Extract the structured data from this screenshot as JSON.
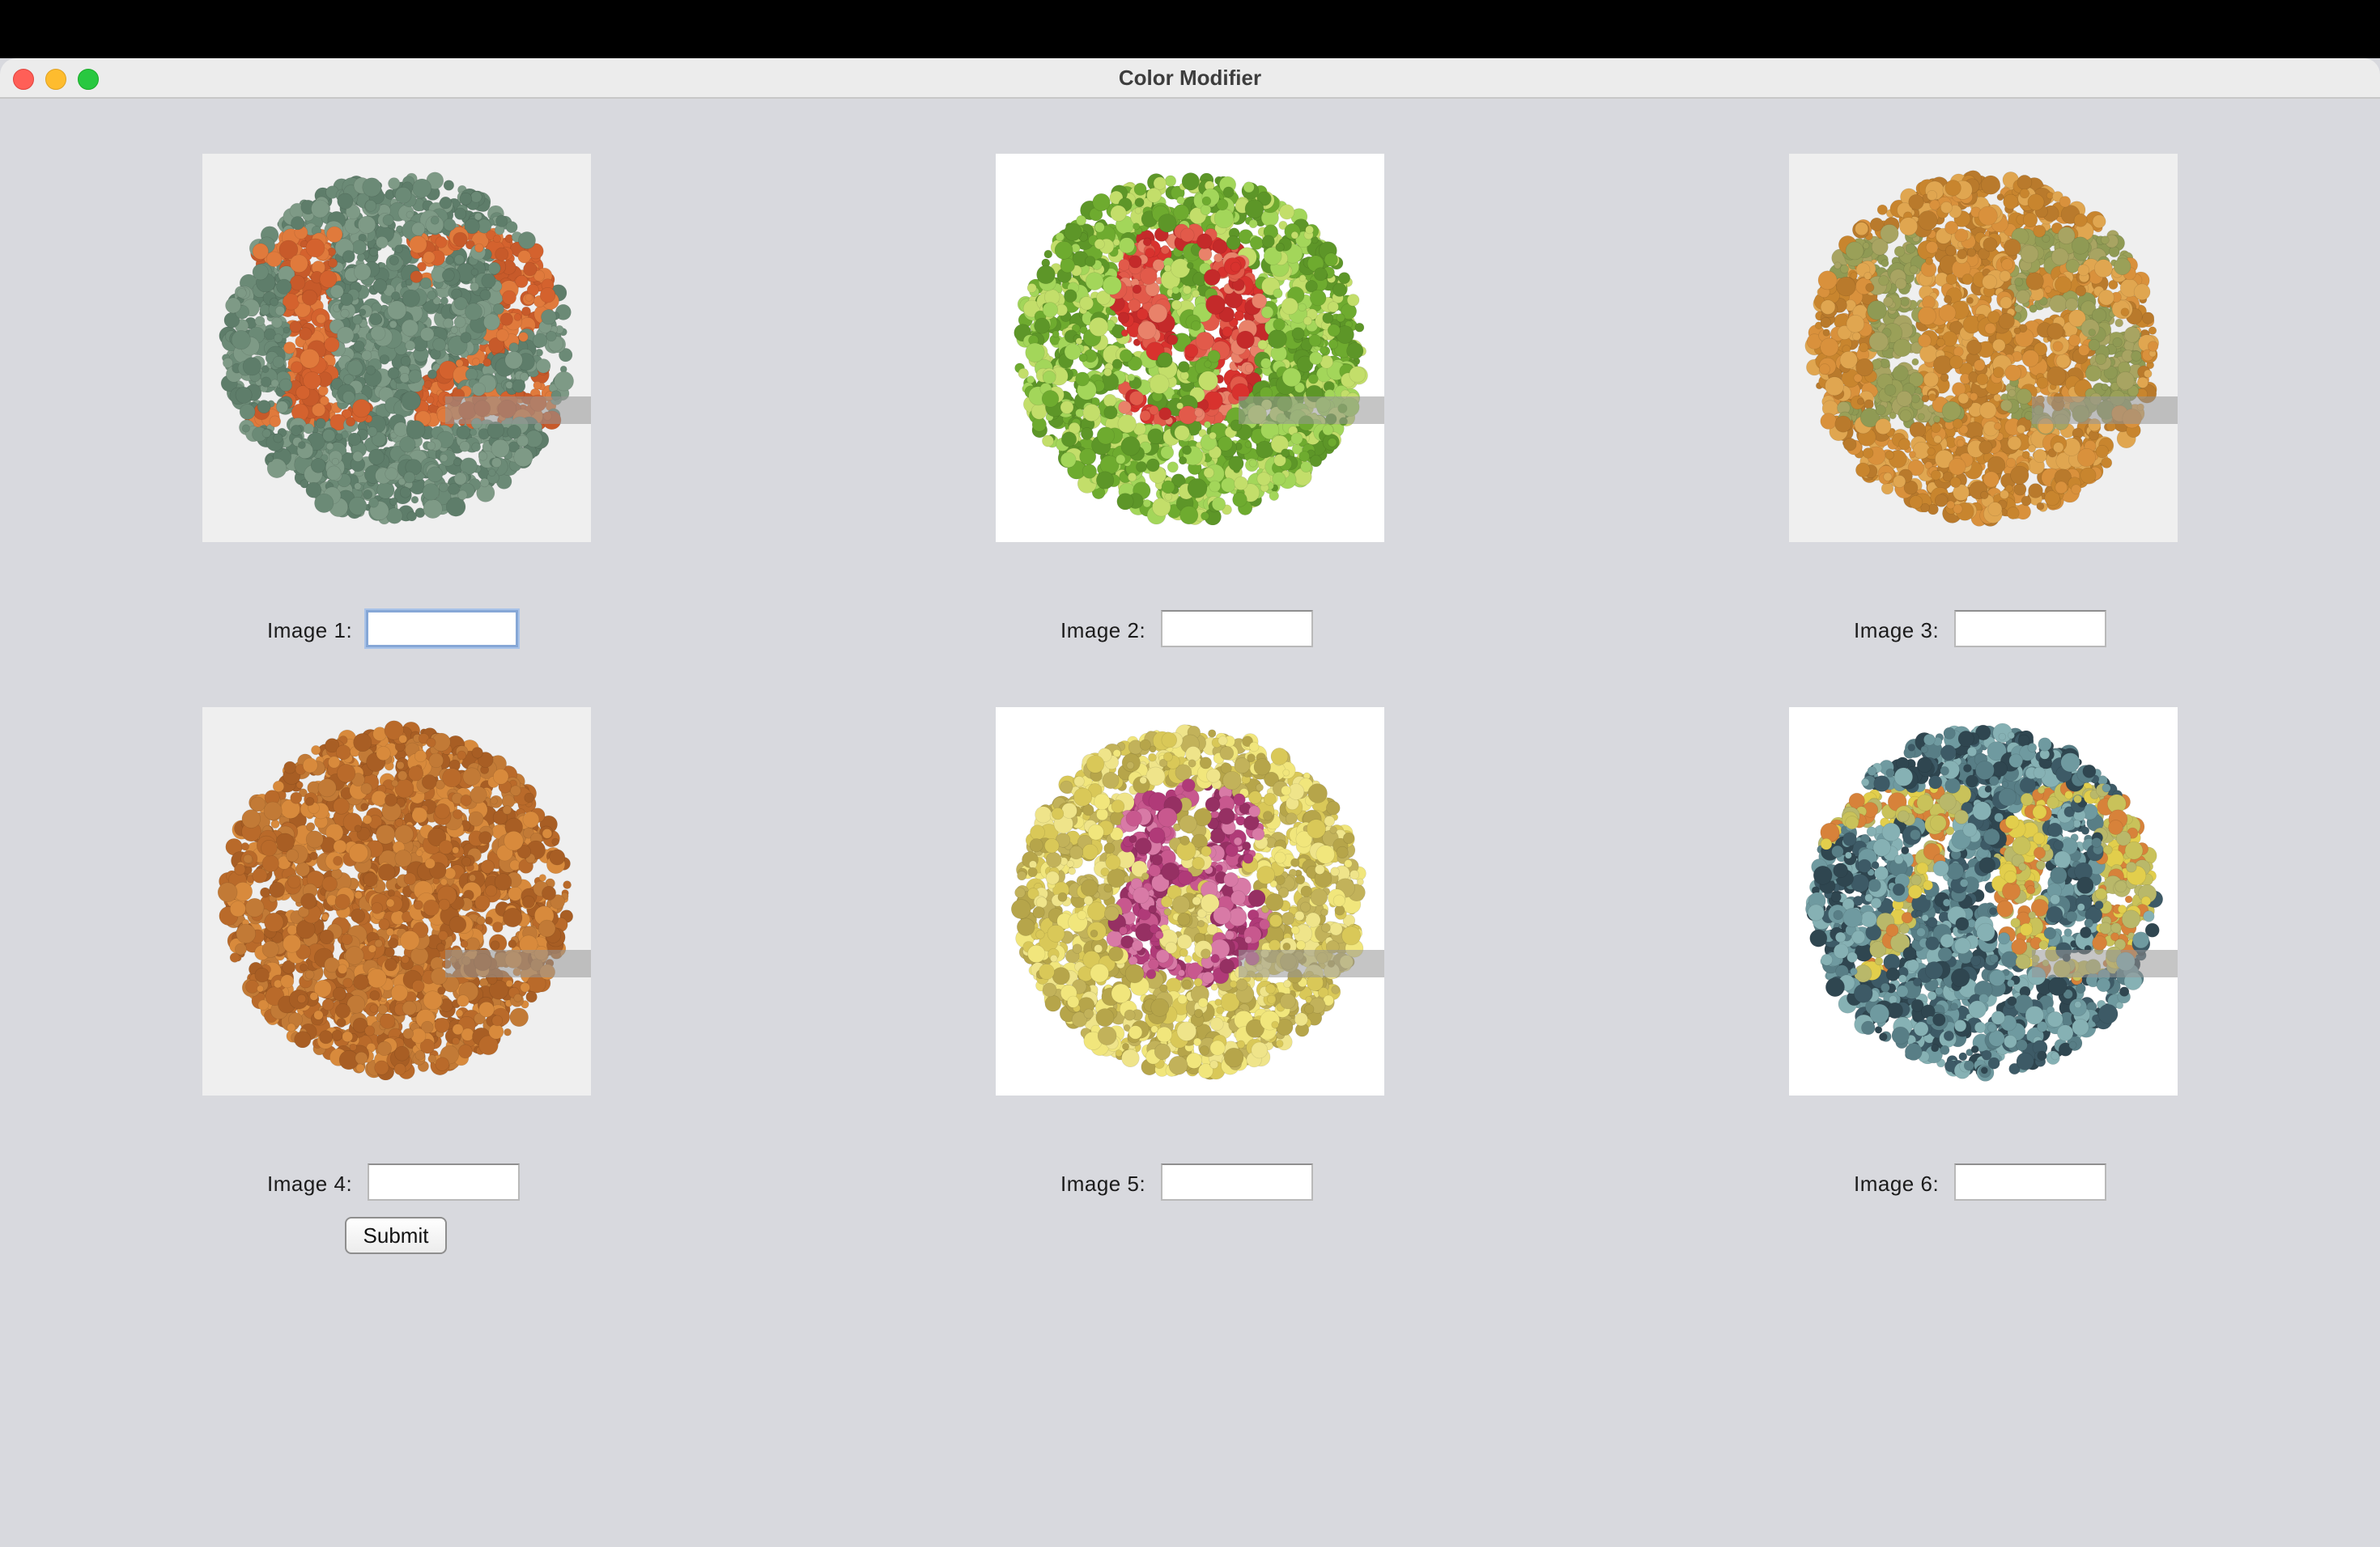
{
  "window": {
    "title": "Color Modifier"
  },
  "plates": [
    {
      "label": "Image 1:",
      "value": "",
      "focused": true,
      "bg": "#efefef",
      "circle": "#6e8c78",
      "dot_base": "#6b8a76",
      "fig_color": "#d4622e",
      "fig_text": "12",
      "alt_colors": [
        "#5e7d6a",
        "#7e9a86",
        "#6b8a76"
      ],
      "fig_colors": [
        "#d4622e",
        "#e07a3c",
        "#c75a2a"
      ],
      "icon": "ishihara-plate-12-icon"
    },
    {
      "label": "Image 2:",
      "value": "",
      "focused": false,
      "bg": "#ffffff",
      "circle": "#8cc63f",
      "dot_base": "#8cc63f",
      "fig_color": "#d8322e",
      "fig_text": "9",
      "alt_colors": [
        "#6eab2f",
        "#a3d65a",
        "#5d9628",
        "#c3de6a"
      ],
      "fig_colors": [
        "#d8322e",
        "#e25a4a",
        "#c42a2a",
        "#e9826a"
      ],
      "icon": "ishihara-plate-9-icon"
    },
    {
      "label": "Image 3:",
      "value": "",
      "focused": false,
      "bg": "#efefef",
      "circle": "#d49436",
      "dot_base": "#d49436",
      "fig_color": "#9aa058",
      "fig_text": "15",
      "alt_colors": [
        "#c8852e",
        "#e0a650",
        "#d9913c",
        "#b97a2c"
      ],
      "fig_colors": [
        "#9aa058",
        "#8f9a54",
        "#a8a462"
      ],
      "icon": "ishihara-plate-15-icon"
    },
    {
      "label": "Image 4:",
      "value": "",
      "focused": false,
      "bg": "#efefef",
      "circle": "#c8742c",
      "dot_base": "#c8742c",
      "fig_color": "#a39434",
      "fig_text": "",
      "alt_colors": [
        "#b96a2a",
        "#d88a3c",
        "#c27a36",
        "#a85e24"
      ],
      "fig_colors": [
        "#a39434",
        "#8f8a36",
        "#b2a040"
      ],
      "icon": "ishihara-plate-hidden-icon"
    },
    {
      "label": "Image 5:",
      "value": "",
      "focused": false,
      "bg": "#ffffff",
      "circle": "#e8dc6c",
      "dot_base": "#e8dc6c",
      "fig_color": "#b03a78",
      "fig_text": "8",
      "alt_colors": [
        "#d9c858",
        "#efe48a",
        "#b6a54a",
        "#f1e67c",
        "#c2b25a"
      ],
      "fig_colors": [
        "#b03a78",
        "#c8588e",
        "#963063",
        "#d87aa6"
      ],
      "icon": "ishihara-plate-8-icon"
    },
    {
      "label": "Image 6:",
      "value": "",
      "focused": false,
      "bg": "#ffffff",
      "circle": "#4d6e74",
      "dot_base": "#4d6e74",
      "fig_color": "#c9c25a",
      "fig_text": "70",
      "alt_colors": [
        "#3d5a66",
        "#6f9aa0",
        "#2f4650",
        "#86b1b4",
        "#587e86"
      ],
      "fig_colors": [
        "#c9c25a",
        "#e2ce4c",
        "#d7823a",
        "#b9b86a"
      ],
      "icon": "ishihara-plate-70-icon"
    }
  ],
  "submit": {
    "label": "Submit"
  }
}
